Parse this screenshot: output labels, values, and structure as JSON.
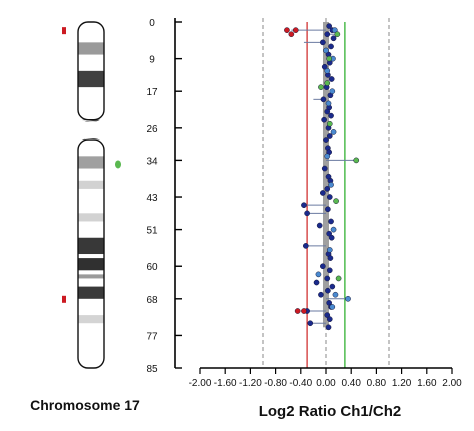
{
  "chart_data": {
    "type": "scatter",
    "title": "",
    "xlabel": "Log2 Ratio Ch1/Ch2",
    "ylabel": "",
    "xlim": [
      -2.0,
      2.0
    ],
    "ylim": [
      0,
      85
    ],
    "y_inverted": true,
    "x_ticks": [
      -2.0,
      -1.6,
      -1.2,
      -0.8,
      -0.4,
      0.0,
      0.4,
      0.8,
      1.2,
      1.6,
      2.0
    ],
    "x_tick_labels": [
      "-2.00",
      "-1.60",
      "-1.20",
      "-0.80",
      "-0.40",
      "0.00",
      "0.40",
      "0.80",
      "1.20",
      "1.60",
      "2.00"
    ],
    "y_ticks": [
      0,
      9,
      17,
      26,
      34,
      43,
      51,
      60,
      68,
      77,
      85
    ],
    "y_tick_labels": [
      "0",
      "9",
      "17",
      "26",
      "34",
      "43",
      "51",
      "60",
      "68",
      "77",
      "85"
    ],
    "grid": "dashed vertical at -1.0, 0 and 1.0",
    "reference_lines": [
      {
        "x": -0.3,
        "color": "#cc2222"
      },
      {
        "x": 0.3,
        "color": "#22aa22"
      }
    ],
    "central_bar": {
      "x": 0.0,
      "y_start": 0,
      "y_end": 75,
      "color": "#a0a0a0"
    },
    "series": [
      {
        "color": "#1a2a8c",
        "points": [
          [
            0.05,
            1
          ],
          [
            0.1,
            2
          ],
          [
            0.02,
            3
          ],
          [
            0.12,
            4
          ],
          [
            -0.05,
            5
          ],
          [
            0.08,
            6
          ],
          [
            0.04,
            8
          ],
          [
            0.06,
            10
          ],
          [
            -0.02,
            11
          ],
          [
            0.03,
            13
          ],
          [
            0.09,
            14
          ],
          [
            0.01,
            16
          ],
          [
            0.07,
            18
          ],
          [
            -0.04,
            19
          ],
          [
            0.05,
            21
          ],
          [
            0.02,
            22
          ],
          [
            0.08,
            23
          ],
          [
            -0.03,
            24
          ],
          [
            0.04,
            26
          ],
          [
            0.06,
            28
          ],
          [
            0.0,
            29
          ],
          [
            0.03,
            31
          ],
          [
            0.05,
            32
          ],
          [
            -0.02,
            36
          ],
          [
            0.04,
            38
          ],
          [
            0.07,
            39
          ],
          [
            0.02,
            41
          ],
          [
            -0.05,
            42
          ],
          [
            0.06,
            43
          ],
          [
            -0.35,
            45
          ],
          [
            0.03,
            46
          ],
          [
            -0.3,
            47
          ],
          [
            0.08,
            49
          ],
          [
            -0.1,
            50
          ],
          [
            0.05,
            52
          ],
          [
            0.09,
            53
          ],
          [
            -0.32,
            55
          ],
          [
            0.04,
            57
          ],
          [
            0.07,
            58
          ],
          [
            -0.05,
            60
          ],
          [
            0.06,
            61
          ],
          [
            0.02,
            63
          ],
          [
            -0.15,
            64
          ],
          [
            0.1,
            65
          ],
          [
            0.03,
            66
          ],
          [
            -0.08,
            67
          ],
          [
            0.05,
            69
          ],
          [
            0.08,
            70
          ],
          [
            -0.3,
            71
          ],
          [
            0.02,
            72
          ],
          [
            0.06,
            73
          ],
          [
            -0.25,
            74
          ],
          [
            0.04,
            75
          ]
        ]
      },
      {
        "color": "#4a8ad0",
        "points": [
          [
            0.14,
            2
          ],
          [
            0.0,
            7
          ],
          [
            0.11,
            9
          ],
          [
            0.02,
            12
          ],
          [
            0.1,
            17
          ],
          [
            0.04,
            20
          ],
          [
            0.12,
            27
          ],
          [
            0.02,
            33
          ],
          [
            0.08,
            40
          ],
          [
            0.12,
            51
          ],
          [
            0.06,
            56
          ],
          [
            -0.12,
            62
          ],
          [
            0.15,
            67
          ],
          [
            0.35,
            68
          ],
          [
            0.1,
            70
          ]
        ]
      },
      {
        "color": "#5ab850",
        "points": [
          [
            0.18,
            3
          ],
          [
            0.05,
            9
          ],
          [
            0.02,
            15
          ],
          [
            -0.08,
            16
          ],
          [
            0.06,
            25
          ],
          [
            0.48,
            34
          ],
          [
            0.16,
            44
          ],
          [
            0.2,
            63
          ]
        ]
      },
      {
        "color": "#cc1a22",
        "points": [
          [
            -0.62,
            2
          ],
          [
            -0.48,
            2
          ],
          [
            -0.55,
            3
          ],
          [
            -0.35,
            71
          ],
          [
            -0.45,
            71
          ]
        ]
      }
    ],
    "stems": [
      [
        -0.55,
        2
      ],
      [
        -0.35,
        5
      ],
      [
        0.48,
        34
      ],
      [
        -0.35,
        45
      ],
      [
        -0.3,
        47
      ],
      [
        -0.32,
        55
      ],
      [
        0.35,
        68
      ],
      [
        -0.3,
        71
      ],
      [
        -0.25,
        74
      ],
      [
        -0.2,
        19
      ],
      [
        0.2,
        3
      ]
    ]
  },
  "ideogram": {
    "label": "Chromosome 17",
    "band_scale_max": 85,
    "centromere": [
      24,
      29
    ],
    "bands": [
      {
        "start": 5,
        "end": 8,
        "color": "#9a9a9a"
      },
      {
        "start": 12,
        "end": 16,
        "color": "#404040"
      },
      {
        "start": 24,
        "end": 29,
        "color": "#505050"
      },
      {
        "start": 33,
        "end": 36,
        "color": "#a0a0a0"
      },
      {
        "start": 39,
        "end": 41,
        "color": "#d2d2d2"
      },
      {
        "start": 47,
        "end": 49,
        "color": "#d2d2d2"
      },
      {
        "start": 53,
        "end": 57,
        "color": "#383838"
      },
      {
        "start": 58,
        "end": 61,
        "color": "#303030"
      },
      {
        "start": 62,
        "end": 63,
        "color": "#9a9a9a"
      },
      {
        "start": 65,
        "end": 68,
        "color": "#3a3a3a"
      },
      {
        "start": 72,
        "end": 74,
        "color": "#d4d4d4"
      }
    ],
    "markers": [
      {
        "y": 2,
        "color": "#cc1a22"
      },
      {
        "y": 35,
        "color": "#5ab850"
      },
      {
        "y": 68,
        "color": "#cc1a22"
      }
    ]
  }
}
